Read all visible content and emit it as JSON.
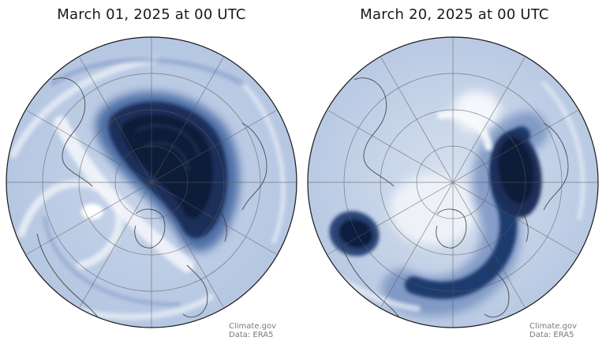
{
  "panels": [
    {
      "title": "March 01, 2025 at 00 UTC",
      "credit_source": "Climate.gov",
      "credit_data": "Data: ERA5"
    },
    {
      "title": "March 20, 2025 at 00 UTC",
      "credit_source": "Climate.gov",
      "credit_data": "Data: ERA5"
    }
  ],
  "colors": {
    "pale": "#dde6f2",
    "mid": "#8aa3cc",
    "dark": "#1e3a6e",
    "darkest": "#0b1a38",
    "coast": "#3a3a3a",
    "grid": "#5a5a5a"
  }
}
